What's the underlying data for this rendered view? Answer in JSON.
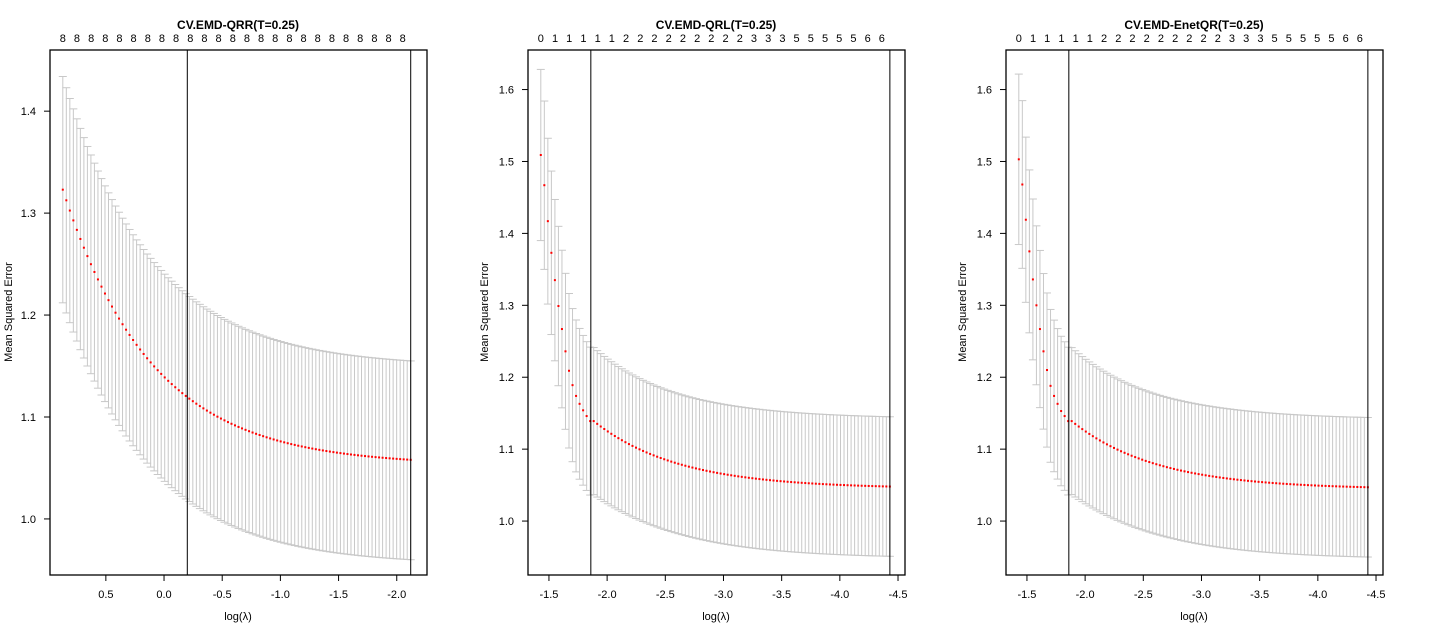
{
  "chart_data": [
    {
      "type": "scatter",
      "title": "CV.EMD-QRR(T=0.25)",
      "xlabel": "log(λ)",
      "ylabel": "Mean Squared Error",
      "x_reversed": true,
      "xlim": [
        0.98,
        -2.26
      ],
      "ylim": [
        0.945,
        1.46
      ],
      "xticks": [
        0.5,
        0.0,
        -0.5,
        -1.0,
        -1.5,
        -2.0
      ],
      "xtick_labels": [
        "0.5",
        "0.0",
        "-0.5",
        "-1.0",
        "-1.5",
        "-2.0"
      ],
      "yticks": [
        1.0,
        1.1,
        1.2,
        1.3,
        1.4
      ],
      "ytick_labels": [
        "1.0",
        "1.1",
        "1.2",
        "1.3",
        "1.4"
      ],
      "top_axis_labels": [
        "8",
        "8",
        "8",
        "8",
        "8",
        "8",
        "8",
        "8",
        "8",
        "8",
        "8",
        "8",
        "8",
        "8",
        "8",
        "8",
        "8",
        "8",
        "8",
        "8",
        "8",
        "8",
        "8",
        "8",
        "8"
      ],
      "vlines": [
        -0.2,
        -2.12
      ],
      "series": {
        "x_start": 0.87,
        "x_end": -2.12,
        "n_points": 100,
        "mean_start": 1.323,
        "mean_vline1": 1.157,
        "mean_end": 1.058,
        "upper_start": 1.434,
        "upper_end": 1.155,
        "lower_start": 1.212,
        "lower_end": 0.96
      },
      "grid": false,
      "point_color": "#ff0000",
      "errorbar_color": "#c8c8c8"
    },
    {
      "type": "scatter",
      "title": "CV.EMD-QRL(T=0.25)",
      "xlabel": "log(λ)",
      "ylabel": "Mean Squared Error",
      "x_reversed": true,
      "xlim": [
        -1.32,
        -4.56
      ],
      "ylim": [
        0.925,
        1.655
      ],
      "xticks": [
        -1.5,
        -2.0,
        -2.5,
        -3.0,
        -3.5,
        -4.0,
        -4.5
      ],
      "xtick_labels": [
        "-1.5",
        "-2.0",
        "-2.5",
        "-3.0",
        "-3.5",
        "-4.0",
        "-4.5"
      ],
      "yticks": [
        1.0,
        1.1,
        1.2,
        1.3,
        1.4,
        1.5,
        1.6
      ],
      "ytick_labels": [
        "1.0",
        "1.1",
        "1.2",
        "1.3",
        "1.4",
        "1.5",
        "1.6"
      ],
      "top_axis_labels": [
        "0",
        "1",
        "1",
        "1",
        "1",
        "1",
        "2",
        "2",
        "2",
        "2",
        "2",
        "2",
        "2",
        "2",
        "2",
        "3",
        "3",
        "3",
        "5",
        "5",
        "5",
        "5",
        "5",
        "6",
        "6"
      ],
      "vlines": [
        -1.86,
        -4.43
      ],
      "series": {
        "x_start": -1.43,
        "x_end": -4.43,
        "n_points": 100,
        "mean_points_first": [
          1.509,
          1.467,
          1.417,
          1.373,
          1.335,
          1.299,
          1.267,
          1.236,
          1.209,
          1.189,
          1.174,
          1.163,
          1.154,
          1.146,
          1.139
        ],
        "mean_at_-2.5": 1.088,
        "mean_at-3.0": 1.062,
        "mean_at_-3.5": 1.053,
        "mean_end": 1.048,
        "upper_start": 1.627,
        "upper_end": 1.145,
        "lower_start": 1.389,
        "lower_end": 0.951
      },
      "grid": false,
      "point_color": "#ff0000",
      "errorbar_color": "#c8c8c8"
    },
    {
      "type": "scatter",
      "title": "CV.EMD-EnetQR(T=0.25)",
      "xlabel": "log(λ)",
      "ylabel": "Mean Squared Error",
      "x_reversed": true,
      "xlim": [
        -1.32,
        -4.56
      ],
      "ylim": [
        0.925,
        1.655
      ],
      "xticks": [
        -1.5,
        -2.0,
        -2.5,
        -3.0,
        -3.5,
        -4.0,
        -4.5
      ],
      "xtick_labels": [
        "-1.5",
        "-2.0",
        "-2.5",
        "-3.0",
        "-3.5",
        "-4.0",
        "-4.5"
      ],
      "yticks": [
        1.0,
        1.1,
        1.2,
        1.3,
        1.4,
        1.5,
        1.6
      ],
      "ytick_labels": [
        "1.0",
        "1.1",
        "1.2",
        "1.3",
        "1.4",
        "1.5",
        "1.6"
      ],
      "top_axis_labels": [
        "0",
        "1",
        "1",
        "1",
        "1",
        "1",
        "2",
        "2",
        "2",
        "2",
        "2",
        "2",
        "2",
        "2",
        "2",
        "3",
        "3",
        "3",
        "5",
        "5",
        "5",
        "5",
        "5",
        "6",
        "6"
      ],
      "vlines": [
        -1.86,
        -4.43
      ],
      "series": {
        "x_start": -1.43,
        "x_end": -4.43,
        "n_points": 100,
        "mean_points_first": [
          1.503,
          1.468,
          1.419,
          1.375,
          1.336,
          1.3,
          1.267,
          1.236,
          1.21,
          1.188,
          1.174,
          1.163,
          1.153,
          1.146,
          1.139
        ],
        "mean_at_-2.5": 1.087,
        "mean_at-3.0": 1.061,
        "mean_at_-3.5": 1.052,
        "mean_end": 1.047,
        "upper_start": 1.622,
        "upper_end": 1.144,
        "lower_start": 1.385,
        "lower_end": 0.95
      },
      "grid": false,
      "point_color": "#ff0000",
      "errorbar_color": "#c8c8c8"
    }
  ],
  "panels": [
    {
      "title": "CV.EMD-QRR(T=0.25)",
      "xlabel": "log(λ)",
      "ylabel": "Mean Squared Error"
    },
    {
      "title": "CV.EMD-QRL(T=0.25)",
      "xlabel": "log(λ)",
      "ylabel": "Mean Squared Error"
    },
    {
      "title": "CV.EMD-EnetQR(T=0.25)",
      "xlabel": "log(λ)",
      "ylabel": "Mean Squared Error"
    }
  ]
}
